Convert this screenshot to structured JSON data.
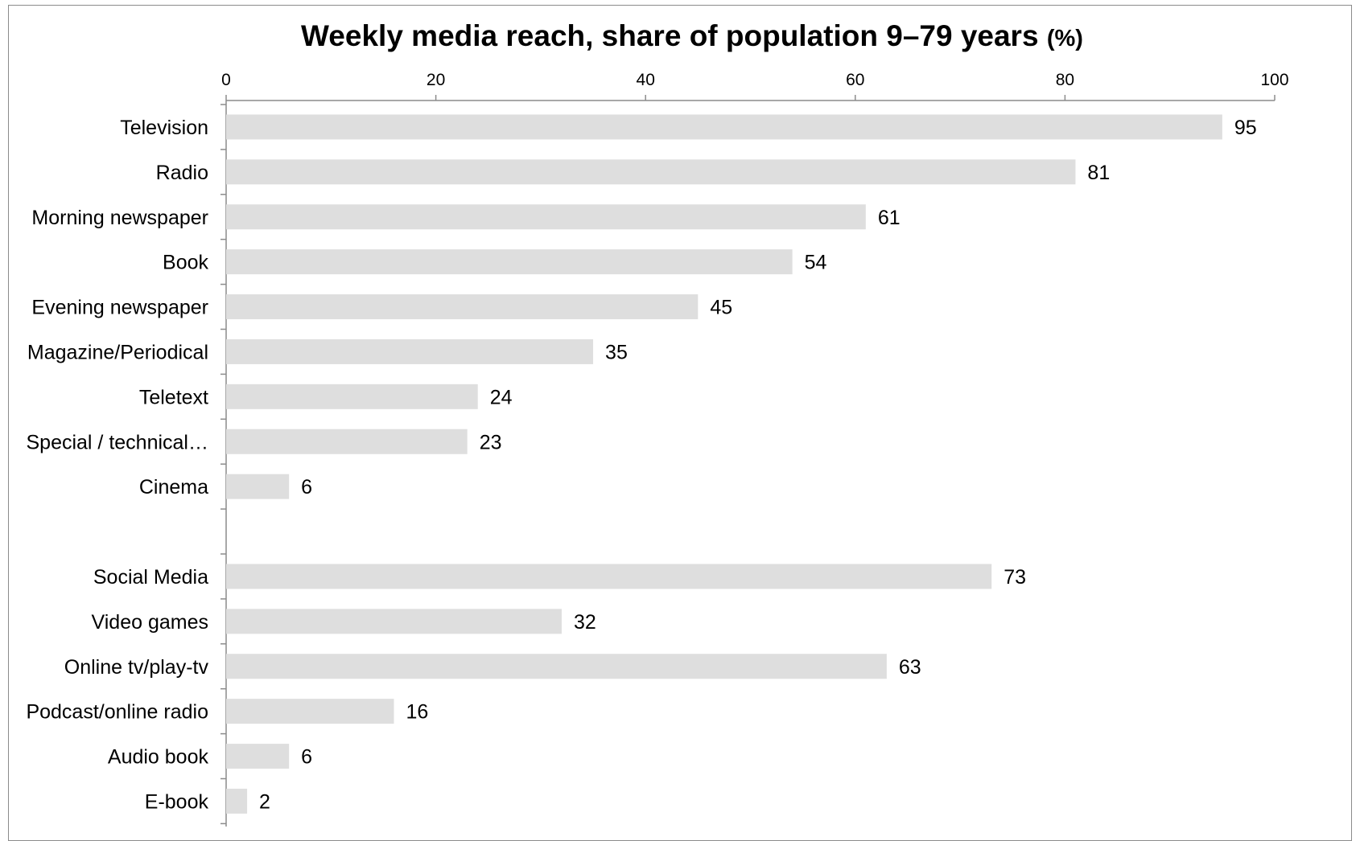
{
  "chart_data": {
    "type": "bar",
    "orientation": "horizontal",
    "title": "Weekly media reach, share of population 9–79 years",
    "title_unit": "(%)",
    "xlabel": "",
    "ylabel": "",
    "xlim": [
      0,
      100
    ],
    "ticks": [
      0,
      20,
      40,
      60,
      80,
      100
    ],
    "axis_position": "top",
    "grid": false,
    "legend": "none",
    "bar_color": "#dedede",
    "categories": [
      "Television",
      "Radio",
      "Morning newspaper",
      "Book",
      "Evening newspaper",
      "Magazine/Periodical",
      "Teletext",
      "Special / technical…",
      "Cinema",
      "",
      "Social Media",
      "Video games",
      "Online tv/play-tv",
      "Podcast/online radio",
      "Audio book",
      "E-book"
    ],
    "values": [
      95,
      81,
      61,
      54,
      45,
      35,
      24,
      23,
      6,
      null,
      73,
      32,
      63,
      16,
      6,
      2
    ]
  }
}
